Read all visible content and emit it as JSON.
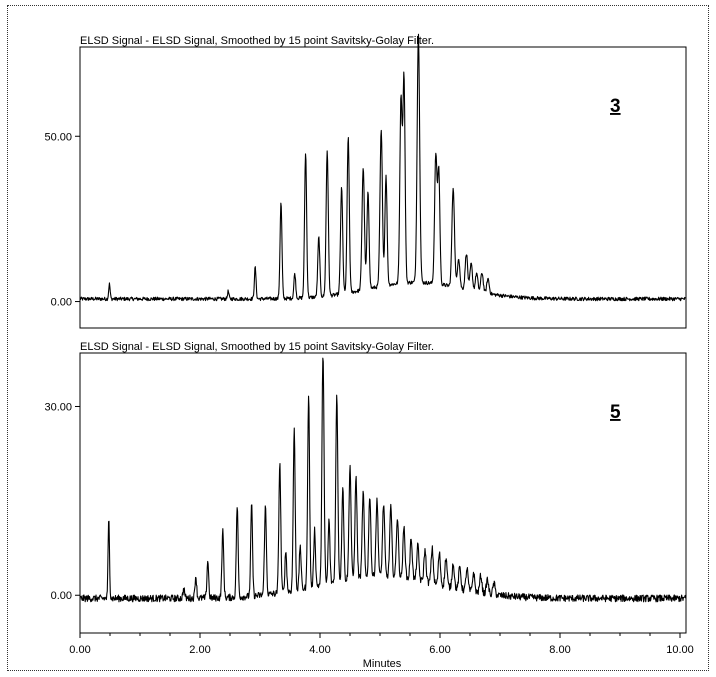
{
  "chart_data": [
    {
      "type": "line",
      "title": "ELSD Signal - ELSD Signal, Smoothed by 15 point Savitsky-Golay Filter.",
      "panel_label": "3",
      "xlim": [
        0,
        10.1
      ],
      "ylim": [
        -8,
        77
      ],
      "yticks": [
        0,
        50
      ],
      "ytick_labels": [
        "0.00",
        "50.00"
      ],
      "grid": false,
      "baseline": 0.8,
      "peaks": [
        {
          "x": 0.49,
          "y": 4.5,
          "w": 0.012
        },
        {
          "x": 2.47,
          "y": 2.3,
          "w": 0.012
        },
        {
          "x": 2.92,
          "y": 9.5,
          "w": 0.014
        },
        {
          "x": 3.35,
          "y": 29,
          "w": 0.016
        },
        {
          "x": 3.58,
          "y": 7.5,
          "w": 0.015
        },
        {
          "x": 3.76,
          "y": 44,
          "w": 0.017
        },
        {
          "x": 3.98,
          "y": 18,
          "w": 0.017
        },
        {
          "x": 4.12,
          "y": 44,
          "w": 0.018
        },
        {
          "x": 4.36,
          "y": 32,
          "w": 0.018
        },
        {
          "x": 4.47,
          "y": 47,
          "w": 0.018
        },
        {
          "x": 4.72,
          "y": 37,
          "w": 0.02
        },
        {
          "x": 4.8,
          "y": 29,
          "w": 0.018
        },
        {
          "x": 5.02,
          "y": 47,
          "w": 0.02
        },
        {
          "x": 5.1,
          "y": 33,
          "w": 0.018
        },
        {
          "x": 5.35,
          "y": 56,
          "w": 0.019
        },
        {
          "x": 5.4,
          "y": 62,
          "w": 0.018
        },
        {
          "x": 5.64,
          "y": 75,
          "w": 0.021
        },
        {
          "x": 5.93,
          "y": 39,
          "w": 0.02
        },
        {
          "x": 5.98,
          "y": 34,
          "w": 0.018
        },
        {
          "x": 6.22,
          "y": 30,
          "w": 0.021
        },
        {
          "x": 6.31,
          "y": 9,
          "w": 0.02
        },
        {
          "x": 6.44,
          "y": 11,
          "w": 0.02
        },
        {
          "x": 6.52,
          "y": 8,
          "w": 0.02
        },
        {
          "x": 6.61,
          "y": 5.5,
          "w": 0.02
        },
        {
          "x": 6.7,
          "y": 6,
          "w": 0.02
        },
        {
          "x": 6.8,
          "y": 4.5,
          "w": 0.02
        }
      ],
      "hump": {
        "center": 5.6,
        "height": 5,
        "sigma": 0.8
      }
    },
    {
      "type": "line",
      "title": "ELSD Signal - ELSD Signal, Smoothed by 15 point Savitsky-Golay Filter.",
      "panel_label": "5",
      "xlim": [
        0,
        10.1
      ],
      "ylim": [
        -6,
        38.5
      ],
      "yticks": [
        0,
        30
      ],
      "ytick_labels": [
        "0.00",
        "30.00"
      ],
      "xticks": [
        0,
        2,
        4,
        6,
        8,
        10
      ],
      "xtick_labels": [
        "0.00",
        "2.00",
        "4.00",
        "6.00",
        "8.00",
        "10.00"
      ],
      "xlabel": "Minutes",
      "grid": false,
      "baseline": -0.5,
      "peaks": [
        {
          "x": 0.48,
          "y": 12.5,
          "w": 0.012
        },
        {
          "x": 1.73,
          "y": 1.5,
          "w": 0.014
        },
        {
          "x": 1.93,
          "y": 3.5,
          "w": 0.014
        },
        {
          "x": 2.13,
          "y": 6,
          "w": 0.014
        },
        {
          "x": 2.38,
          "y": 10.5,
          "w": 0.015
        },
        {
          "x": 2.62,
          "y": 14.5,
          "w": 0.015
        },
        {
          "x": 2.86,
          "y": 14.5,
          "w": 0.015
        },
        {
          "x": 3.09,
          "y": 14,
          "w": 0.016
        },
        {
          "x": 3.33,
          "y": 20.5,
          "w": 0.016
        },
        {
          "x": 3.43,
          "y": 6.5,
          "w": 0.015
        },
        {
          "x": 3.57,
          "y": 25.5,
          "w": 0.016
        },
        {
          "x": 3.67,
          "y": 7,
          "w": 0.015
        },
        {
          "x": 3.81,
          "y": 30.5,
          "w": 0.016
        },
        {
          "x": 3.91,
          "y": 9,
          "w": 0.015
        },
        {
          "x": 4.05,
          "y": 37,
          "w": 0.017
        },
        {
          "x": 4.15,
          "y": 10,
          "w": 0.015
        },
        {
          "x": 4.28,
          "y": 29.5,
          "w": 0.017
        },
        {
          "x": 4.38,
          "y": 15,
          "w": 0.016
        },
        {
          "x": 4.5,
          "y": 18,
          "w": 0.017
        },
        {
          "x": 4.6,
          "y": 16,
          "w": 0.017
        },
        {
          "x": 4.72,
          "y": 13.5,
          "w": 0.017
        },
        {
          "x": 4.83,
          "y": 13,
          "w": 0.017
        },
        {
          "x": 4.95,
          "y": 12,
          "w": 0.018
        },
        {
          "x": 5.06,
          "y": 11.5,
          "w": 0.018
        },
        {
          "x": 5.18,
          "y": 11,
          "w": 0.018
        },
        {
          "x": 5.29,
          "y": 9.5,
          "w": 0.018
        },
        {
          "x": 5.4,
          "y": 8,
          "w": 0.018
        },
        {
          "x": 5.52,
          "y": 6.5,
          "w": 0.018
        },
        {
          "x": 5.63,
          "y": 5.5,
          "w": 0.018
        },
        {
          "x": 5.75,
          "y": 5,
          "w": 0.018
        },
        {
          "x": 5.87,
          "y": 5.5,
          "w": 0.018
        },
        {
          "x": 5.99,
          "y": 5,
          "w": 0.018
        },
        {
          "x": 6.1,
          "y": 4.5,
          "w": 0.018
        },
        {
          "x": 6.22,
          "y": 4,
          "w": 0.018
        },
        {
          "x": 6.33,
          "y": 3.5,
          "w": 0.018
        },
        {
          "x": 6.45,
          "y": 3.5,
          "w": 0.018
        },
        {
          "x": 6.56,
          "y": 3,
          "w": 0.018
        },
        {
          "x": 6.68,
          "y": 2.8,
          "w": 0.018
        },
        {
          "x": 6.79,
          "y": 2.3,
          "w": 0.018
        },
        {
          "x": 6.9,
          "y": 1.8,
          "w": 0.018
        }
      ],
      "hump": {
        "center": 5.0,
        "height": 3.5,
        "sigma": 1.0
      }
    }
  ]
}
